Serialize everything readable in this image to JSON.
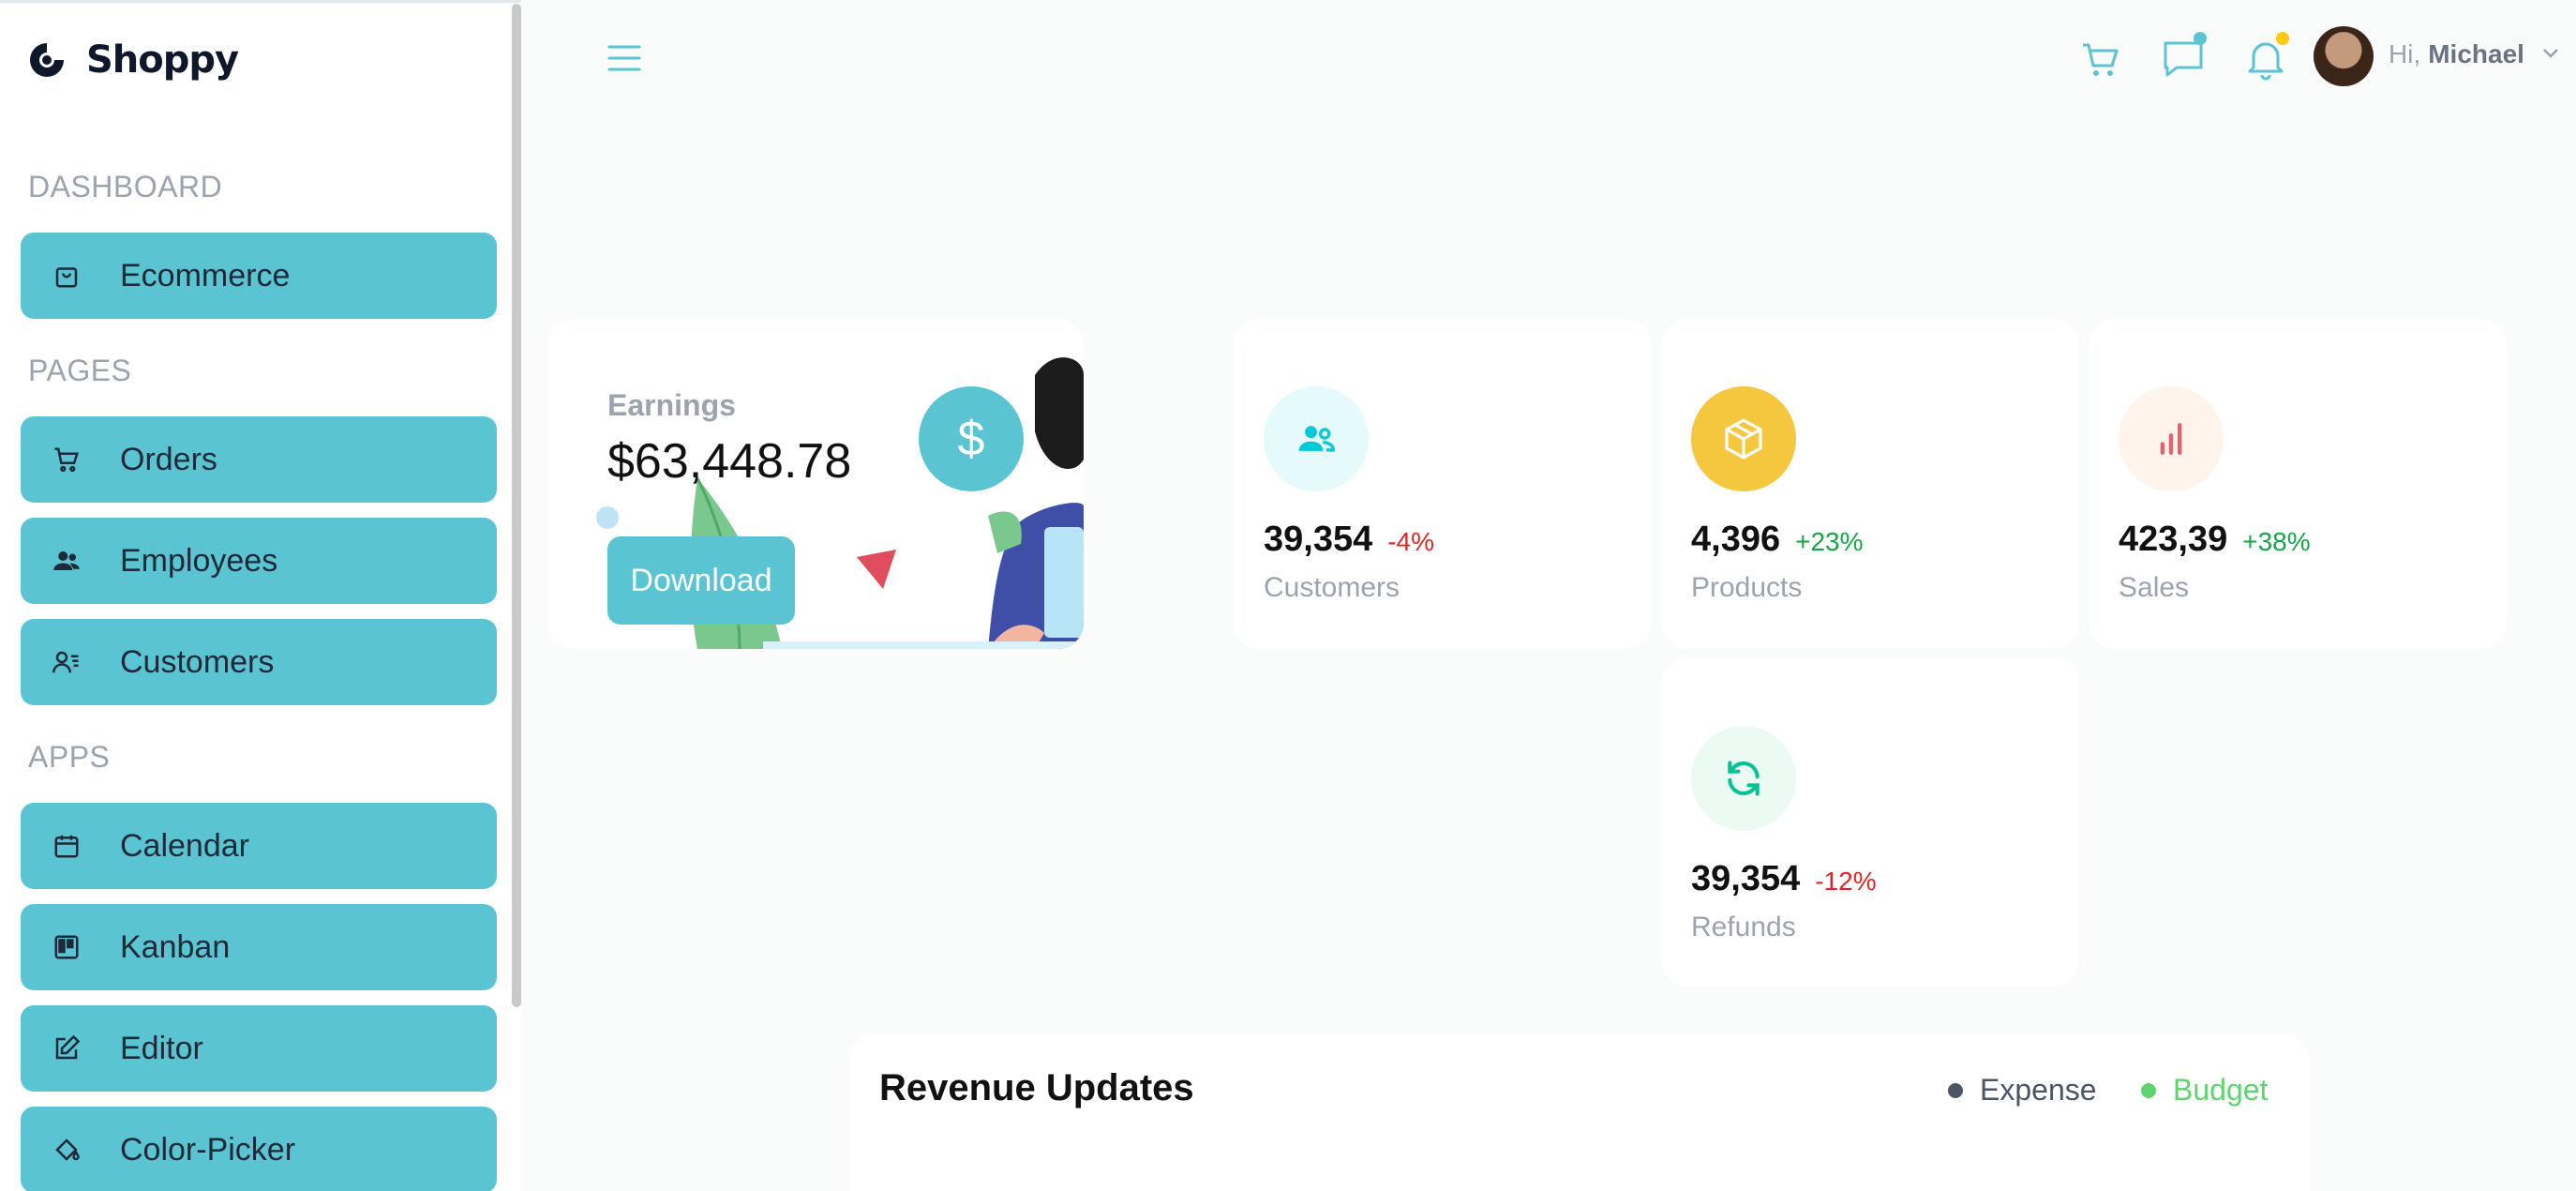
{
  "app": {
    "name": "Shoppy"
  },
  "sidebar": {
    "sections": [
      {
        "title": "DASHBOARD",
        "items": [
          {
            "label": "Ecommerce",
            "icon": "shopping-bag-icon"
          }
        ]
      },
      {
        "title": "PAGES",
        "items": [
          {
            "label": "Orders",
            "icon": "cart-icon"
          },
          {
            "label": "Employees",
            "icon": "users-icon"
          },
          {
            "label": "Customers",
            "icon": "user-list-icon"
          }
        ]
      },
      {
        "title": "APPS",
        "items": [
          {
            "label": "Calendar",
            "icon": "calendar-icon"
          },
          {
            "label": "Kanban",
            "icon": "kanban-icon"
          },
          {
            "label": "Editor",
            "icon": "edit-icon"
          },
          {
            "label": "Color-Picker",
            "icon": "paint-bucket-icon"
          }
        ]
      }
    ]
  },
  "header": {
    "greeting": "Hi,",
    "user_name": "Michael",
    "icons": [
      "menu-icon",
      "cart-icon",
      "chat-icon",
      "bell-icon"
    ],
    "notification_colors": {
      "chat": "#5ac4d2",
      "bell": "#fec90f"
    }
  },
  "earnings": {
    "label": "Earnings",
    "value": "$63,448.78",
    "button": "Download",
    "currency_symbol": "$"
  },
  "stats": [
    {
      "amount": "39,354",
      "percentage": "-4%",
      "title": "Customers",
      "icon": "customers-icon",
      "icon_color": "#03c9d7",
      "icon_bg": "#e5fafb",
      "pct_color": "#dc2626"
    },
    {
      "amount": "4,396",
      "percentage": "+23%",
      "title": "Products",
      "icon": "box-icon",
      "icon_color": "#ffffff",
      "icon_bg": "#f5c73f",
      "pct_color": "#16a34a"
    },
    {
      "amount": "423,39",
      "percentage": "+38%",
      "title": "Sales",
      "icon": "bar-chart-icon",
      "icon_color": "#e4626f",
      "icon_bg": "#fff4ec",
      "pct_color": "#16a34a"
    },
    {
      "amount": "39,354",
      "percentage": "-12%",
      "title": "Refunds",
      "icon": "refresh-icon",
      "icon_color": "#00c292",
      "icon_bg": "#ebfaf2",
      "pct_color": "#dc2626"
    }
  ],
  "revenue": {
    "title": "Revenue Updates",
    "legend": [
      {
        "label": "Expense",
        "color": "#4b5563"
      },
      {
        "label": "Budget",
        "color": "#5ed46f"
      }
    ]
  },
  "colors": {
    "accent": "#5ac4d2"
  }
}
